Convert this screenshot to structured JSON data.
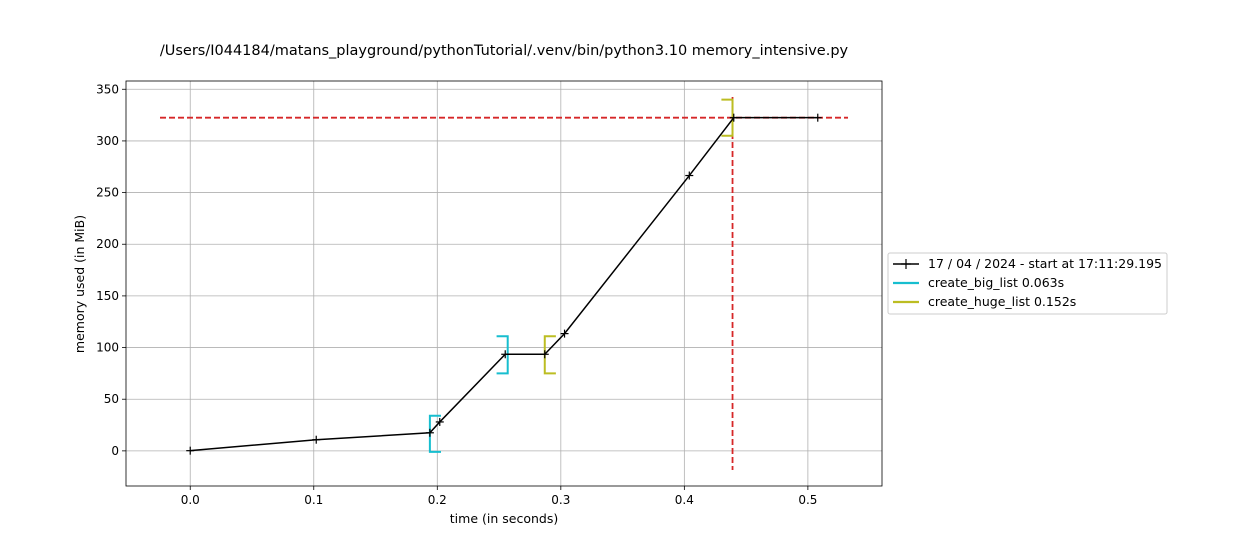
{
  "chart_data": {
    "type": "line",
    "title": "/Users/I044184/matans_playground/pythonTutorial/.venv/bin/python3.10 memory_intensive.py",
    "xlabel": "time (in seconds)",
    "ylabel": "memory used (in MiB)",
    "xlim": [
      -0.052,
      0.56
    ],
    "ylim": [
      -34,
      358
    ],
    "xticks": [
      0.0,
      0.1,
      0.2,
      0.3,
      0.4,
      0.5
    ],
    "xtick_labels": [
      "0.0",
      "0.1",
      "0.2",
      "0.3",
      "0.4",
      "0.5"
    ],
    "yticks": [
      0,
      50,
      100,
      150,
      200,
      250,
      300,
      350
    ],
    "ytick_labels": [
      "0",
      "50",
      "100",
      "150",
      "200",
      "250",
      "300",
      "350"
    ],
    "grid": true,
    "legend_position": "right",
    "series": [
      {
        "name": "17 / 04 / 2024 - start at 17:11:29.195",
        "color": "#000000",
        "marker": "+",
        "x": [
          0.0,
          0.102,
          0.194,
          0.202,
          0.255,
          0.287,
          0.303,
          0.404,
          0.44,
          0.508
        ],
        "y": [
          0.2,
          10.8,
          17.5,
          28.0,
          93.5,
          93.5,
          113.5,
          266.5,
          322.5,
          322.5
        ]
      }
    ],
    "function_brackets": [
      {
        "name": "create_big_list 0.063s",
        "color": "#17becf",
        "start": {
          "x": 0.194,
          "y_low": -1,
          "y_high": 34
        },
        "end": {
          "x": 0.257,
          "y_low": 75,
          "y_high": 111
        }
      },
      {
        "name": "create_huge_list 0.152s",
        "color": "#bcbd22",
        "start": {
          "x": 0.287,
          "y_low": 75,
          "y_high": 111
        },
        "end": {
          "x": 0.439,
          "y_low": 305,
          "y_high": 340
        }
      }
    ],
    "peak_lines": {
      "color": "#d62728",
      "y": 322.5,
      "x": 0.439
    }
  }
}
